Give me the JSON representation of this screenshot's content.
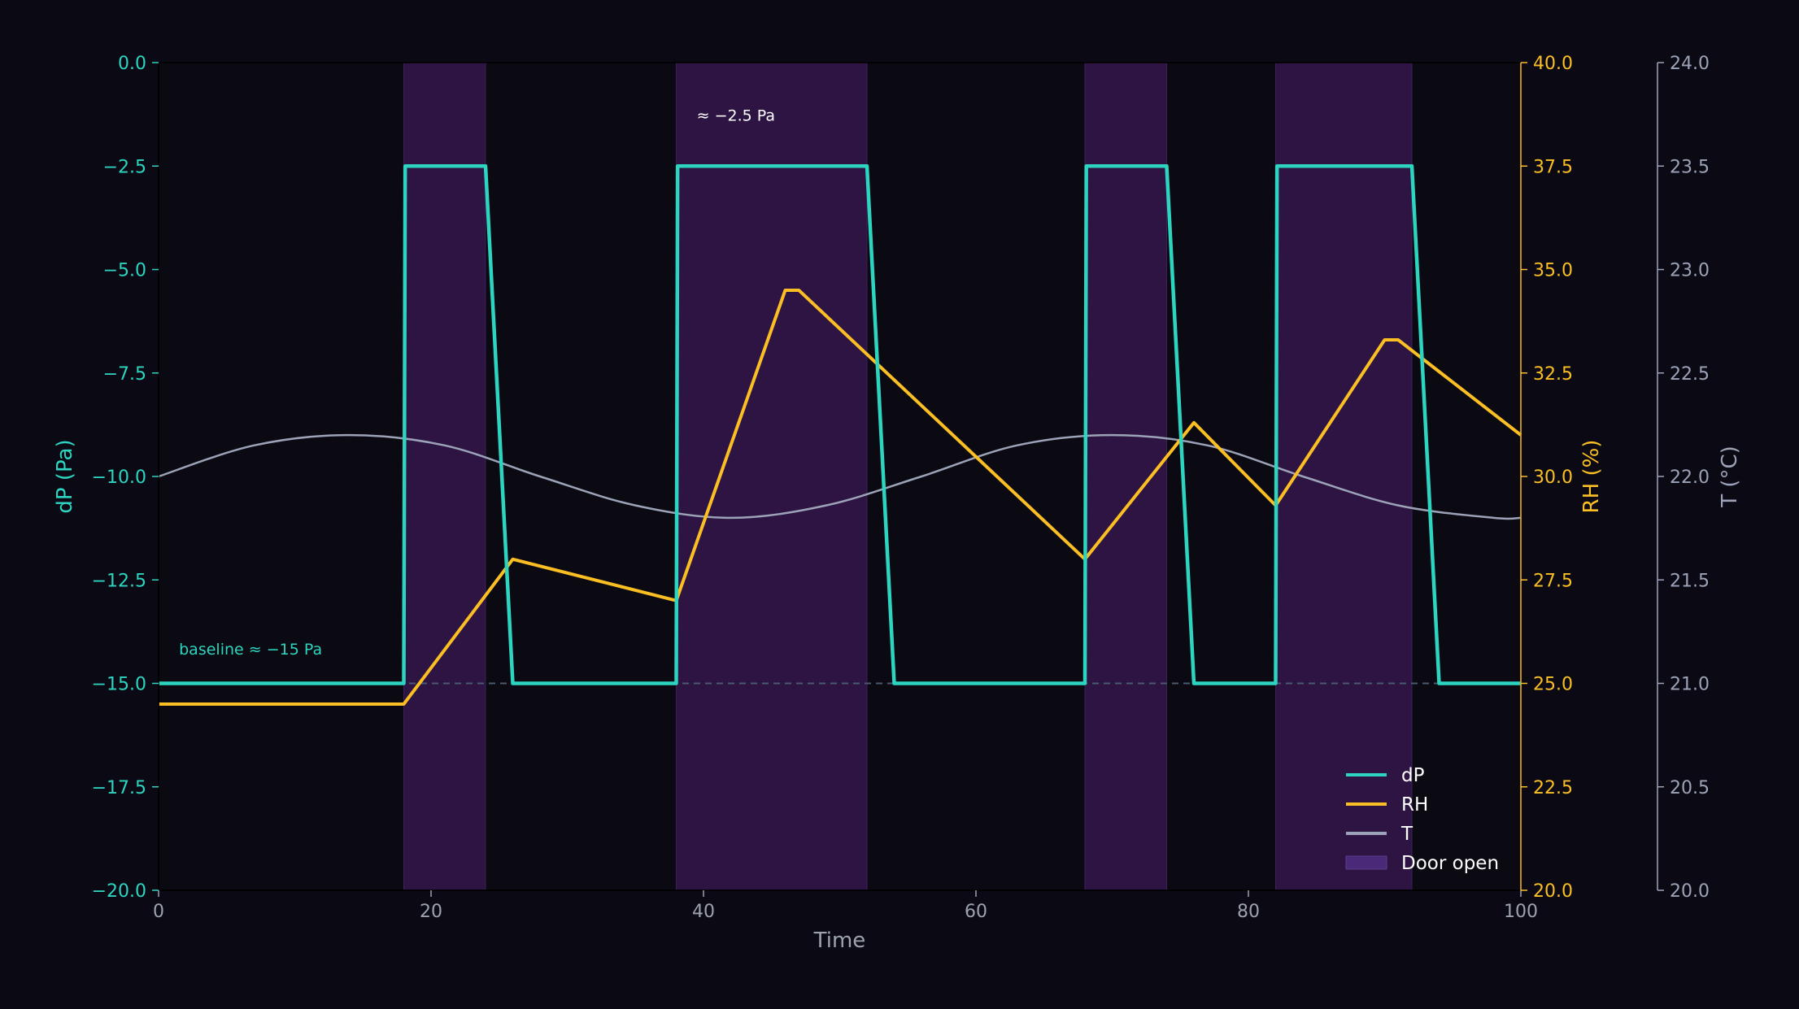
{
  "colors": {
    "background": "#0b0a14",
    "plot_background": "#0b0a12",
    "dp": "#2dd4bf",
    "rh": "#fbbf24",
    "t": "#9ca3b8",
    "door": "#2e1442",
    "baseline": "#4a5a6e",
    "annotation": "#ffffff",
    "axis_label": "#9ca3af"
  },
  "chart_data": {
    "type": "line",
    "xlabel": "Time",
    "xlim": [
      0,
      100
    ],
    "x_ticks": [
      0,
      20,
      40,
      60,
      80,
      100
    ],
    "axes": {
      "dp": {
        "label": "dP (Pa)",
        "ylim": [
          -20,
          0
        ],
        "ticks": [
          0.0,
          -2.5,
          -5.0,
          -7.5,
          -10.0,
          -12.5,
          -15.0,
          -17.5,
          -20.0
        ]
      },
      "rh": {
        "label": "RH (%)",
        "ylim": [
          20,
          40
        ],
        "ticks": [
          20.0,
          22.5,
          25.0,
          27.5,
          30.0,
          32.5,
          35.0,
          37.5,
          40.0
        ]
      },
      "t": {
        "label": "T (°C)",
        "ylim": [
          20,
          24
        ],
        "ticks": [
          20.0,
          20.5,
          21.0,
          21.5,
          22.0,
          22.5,
          23.0,
          23.5,
          24.0
        ]
      }
    },
    "door_open": [
      [
        18,
        24
      ],
      [
        38,
        52
      ],
      [
        68,
        74
      ],
      [
        82,
        92
      ]
    ],
    "series": [
      {
        "name": "dP",
        "axis": "dp",
        "x": [
          0,
          18,
          18.1,
          24,
          26,
          38,
          38.1,
          52,
          54,
          68,
          68.1,
          74,
          76,
          82,
          82.1,
          92,
          94,
          100
        ],
        "y": [
          -15,
          -15,
          -2.5,
          -2.5,
          -15,
          -15,
          -2.5,
          -2.5,
          -15,
          -15,
          -2.5,
          -2.5,
          -15,
          -15,
          -2.5,
          -2.5,
          -15,
          -15
        ]
      },
      {
        "name": "RH",
        "axis": "rh",
        "x": [
          0,
          18,
          26,
          38,
          46,
          47,
          68,
          76,
          82,
          90,
          91,
          100
        ],
        "y": [
          24.5,
          24.5,
          28.0,
          27.0,
          34.5,
          34.5,
          28.0,
          31.3,
          29.3,
          33.3,
          33.3,
          31.0
        ]
      },
      {
        "name": "T",
        "axis": "t",
        "x": [
          0,
          7,
          14,
          21,
          28,
          35,
          42,
          49,
          56,
          63,
          70,
          77,
          84,
          91,
          98,
          100
        ],
        "y": [
          22.0,
          22.15,
          22.2,
          22.15,
          22.0,
          21.86,
          21.8,
          21.86,
          22.0,
          22.15,
          22.2,
          22.15,
          22.0,
          21.86,
          21.8,
          21.8
        ]
      }
    ],
    "baseline": {
      "axis": "dp",
      "y": -15
    },
    "annotations": [
      {
        "text": "baseline ≈ −15 Pa",
        "x": 1.5,
        "y": -14.3,
        "axis": "dp",
        "color": "dp"
      },
      {
        "text": "≈ −2.5 Pa",
        "x": 39.5,
        "y": -1.4,
        "axis": "dp",
        "color": "annotation"
      }
    ],
    "legend": {
      "placement": "lower-right",
      "entries": [
        {
          "label": "dP",
          "kind": "line",
          "color": "dp"
        },
        {
          "label": "RH",
          "kind": "line",
          "color": "rh"
        },
        {
          "label": "T",
          "kind": "line",
          "color": "t"
        },
        {
          "label": "Door open",
          "kind": "patch",
          "color": "door"
        }
      ]
    }
  }
}
